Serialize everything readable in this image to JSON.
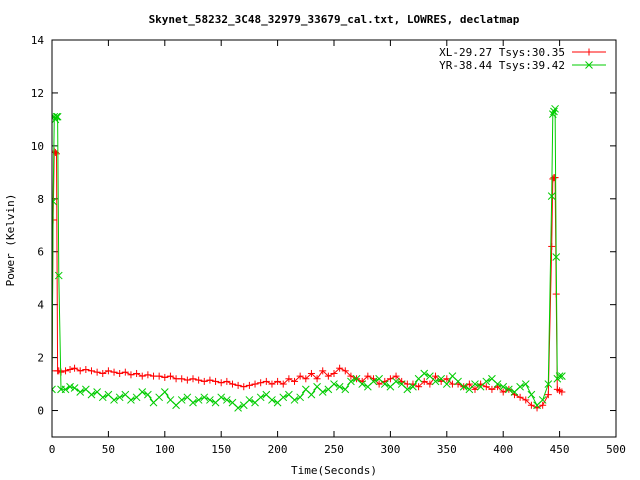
{
  "chart_data": {
    "type": "line",
    "title": "Skynet_58232_3C48_32979_33679_cal.txt, LOWRES, declatmap",
    "xlabel": "Time(Seconds)",
    "ylabel": "Power (Kelvin)",
    "xlim": [
      0,
      500
    ],
    "ylim": [
      -1,
      14
    ],
    "xticks": [
      0,
      50,
      100,
      150,
      200,
      250,
      300,
      350,
      400,
      450,
      500
    ],
    "yticks": [
      0,
      2,
      4,
      6,
      8,
      10,
      12,
      14
    ],
    "grid": false,
    "legend_position": "top-right",
    "series": [
      {
        "name": "XL-29.27 Tsys:30.35",
        "color": "#ff0000",
        "marker": "plus",
        "x": [
          0,
          1,
          2,
          3,
          4,
          5,
          6,
          8,
          12,
          16,
          20,
          25,
          30,
          35,
          40,
          45,
          50,
          55,
          60,
          65,
          70,
          75,
          80,
          85,
          90,
          95,
          100,
          105,
          110,
          115,
          120,
          125,
          130,
          135,
          140,
          145,
          150,
          155,
          160,
          165,
          170,
          175,
          180,
          185,
          190,
          195,
          200,
          205,
          210,
          215,
          220,
          225,
          230,
          235,
          240,
          245,
          250,
          255,
          260,
          265,
          270,
          275,
          280,
          285,
          290,
          295,
          300,
          305,
          310,
          315,
          320,
          325,
          330,
          335,
          340,
          345,
          350,
          355,
          360,
          365,
          370,
          375,
          380,
          385,
          390,
          395,
          400,
          405,
          410,
          415,
          420,
          425,
          430,
          435,
          440,
          443,
          444,
          445,
          446,
          447,
          448,
          450,
          452
        ],
        "y": [
          1.5,
          7.2,
          9.8,
          9.75,
          9.7,
          1.5,
          1.5,
          1.45,
          1.5,
          1.55,
          1.6,
          1.5,
          1.55,
          1.5,
          1.45,
          1.4,
          1.5,
          1.45,
          1.4,
          1.45,
          1.35,
          1.4,
          1.3,
          1.35,
          1.3,
          1.3,
          1.25,
          1.3,
          1.2,
          1.2,
          1.15,
          1.2,
          1.15,
          1.1,
          1.15,
          1.1,
          1.05,
          1.1,
          1.0,
          0.95,
          0.9,
          0.95,
          1.0,
          1.05,
          1.1,
          1.0,
          1.1,
          1.0,
          1.2,
          1.1,
          1.3,
          1.2,
          1.4,
          1.2,
          1.5,
          1.3,
          1.4,
          1.6,
          1.5,
          1.3,
          1.2,
          1.1,
          1.3,
          1.2,
          1.0,
          1.1,
          1.2,
          1.3,
          1.1,
          1.0,
          1.0,
          0.9,
          1.1,
          1.0,
          1.3,
          1.1,
          1.2,
          1.0,
          1.0,
          0.9,
          1.0,
          0.8,
          1.0,
          0.9,
          0.8,
          0.9,
          0.7,
          0.8,
          0.6,
          0.5,
          0.4,
          0.2,
          0.1,
          0.2,
          0.6,
          6.2,
          8.75,
          8.8,
          8.8,
          4.4,
          0.8,
          0.75,
          0.7
        ]
      },
      {
        "name": "YR-38.44 Tsys:39.42",
        "color": "#00cc00",
        "marker": "cross",
        "x": [
          0,
          1,
          2,
          3,
          4,
          5,
          6,
          8,
          12,
          16,
          20,
          25,
          30,
          35,
          40,
          45,
          50,
          55,
          60,
          65,
          70,
          75,
          80,
          85,
          90,
          95,
          100,
          105,
          110,
          115,
          120,
          125,
          130,
          135,
          140,
          145,
          150,
          155,
          160,
          165,
          170,
          175,
          180,
          185,
          190,
          195,
          200,
          205,
          210,
          215,
          220,
          225,
          230,
          235,
          240,
          245,
          250,
          255,
          260,
          265,
          270,
          275,
          280,
          285,
          290,
          295,
          300,
          305,
          310,
          315,
          320,
          325,
          330,
          335,
          340,
          345,
          350,
          355,
          360,
          365,
          370,
          375,
          380,
          385,
          390,
          395,
          400,
          405,
          410,
          415,
          420,
          425,
          430,
          435,
          440,
          443,
          444,
          445,
          446,
          447,
          448,
          450,
          452
        ],
        "y": [
          0.8,
          7.9,
          11.1,
          11.0,
          11.1,
          11.1,
          5.1,
          0.8,
          0.8,
          0.9,
          0.85,
          0.7,
          0.8,
          0.6,
          0.7,
          0.5,
          0.6,
          0.4,
          0.5,
          0.6,
          0.4,
          0.5,
          0.7,
          0.6,
          0.3,
          0.5,
          0.7,
          0.4,
          0.2,
          0.4,
          0.5,
          0.3,
          0.4,
          0.5,
          0.4,
          0.3,
          0.5,
          0.4,
          0.3,
          0.1,
          0.2,
          0.4,
          0.3,
          0.5,
          0.6,
          0.4,
          0.3,
          0.5,
          0.6,
          0.4,
          0.5,
          0.8,
          0.6,
          0.9,
          0.7,
          0.8,
          1.0,
          0.9,
          0.8,
          1.1,
          1.2,
          1.0,
          0.9,
          1.1,
          1.2,
          1.0,
          0.9,
          1.1,
          1.0,
          0.8,
          0.9,
          1.2,
          1.4,
          1.3,
          1.1,
          1.2,
          1.0,
          1.3,
          1.1,
          0.9,
          0.8,
          1.0,
          0.9,
          1.1,
          1.2,
          1.0,
          0.9,
          0.8,
          0.7,
          0.9,
          1.0,
          0.6,
          0.2,
          0.4,
          1.0,
          8.1,
          11.2,
          11.3,
          11.4,
          5.8,
          1.2,
          1.3,
          1.3
        ]
      }
    ]
  }
}
